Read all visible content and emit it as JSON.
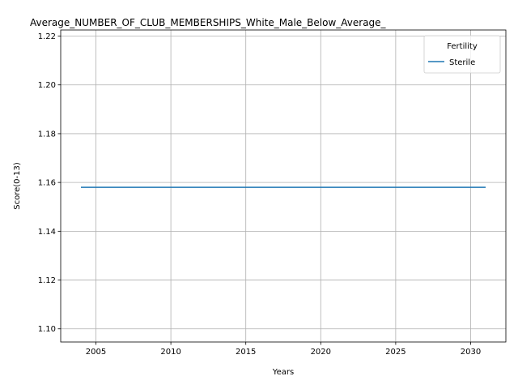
{
  "chart_data": {
    "type": "line",
    "title": "Average_NUMBER_OF_CLUB_MEMBERSHIPS_White_Male_Below_Average_",
    "xlabel": "Years",
    "ylabel": "Score(0-13)",
    "xlim": [
      2002.65,
      2032.35
    ],
    "ylim": [
      1.0946,
      1.2225
    ],
    "xticks": [
      2005,
      2010,
      2015,
      2020,
      2025,
      2030
    ],
    "yticks": [
      1.1,
      1.12,
      1.14,
      1.16,
      1.18,
      1.2,
      1.22
    ],
    "grid": true,
    "legend": {
      "title": "Fertility",
      "placement": "top-right"
    },
    "series": [
      {
        "name": "Sterile",
        "color": "#1f77b4",
        "x": [
          2004,
          2005,
          2006,
          2007,
          2008,
          2009,
          2010,
          2011,
          2012,
          2013,
          2014,
          2015,
          2016,
          2017,
          2018,
          2019,
          2020,
          2021,
          2022,
          2023,
          2024,
          2025,
          2026,
          2027,
          2028,
          2029,
          2030,
          2031
        ],
        "y": [
          1.158,
          1.158,
          1.158,
          1.158,
          1.158,
          1.158,
          1.158,
          1.158,
          1.158,
          1.158,
          1.158,
          1.158,
          1.158,
          1.158,
          1.158,
          1.158,
          1.158,
          1.158,
          1.158,
          1.158,
          1.158,
          1.158,
          1.158,
          1.158,
          1.158,
          1.158,
          1.158,
          1.158
        ]
      }
    ]
  }
}
